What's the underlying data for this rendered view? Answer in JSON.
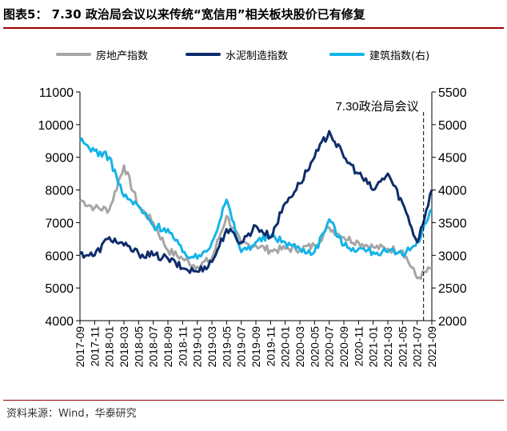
{
  "title": "图表5： 7.30 政治局会议以来传统“宽信用”相关板块股价已有修复",
  "source": "资料来源：Wind，华泰研究",
  "colors": {
    "real_estate": "#a6a6a6",
    "cement": "#0f2d6b",
    "building": "#14b4e8",
    "title_rule": "#9c0000"
  },
  "chart_data": {
    "type": "line",
    "x": [
      "2017-09",
      "2017-11",
      "2018-01",
      "2018-03",
      "2018-05",
      "2018-07",
      "2018-09",
      "2018-11",
      "2019-01",
      "2019-03",
      "2019-05",
      "2019-07",
      "2019-09",
      "2019-11",
      "2020-01",
      "2020-03",
      "2020-05",
      "2020-07",
      "2020-09",
      "2020-11",
      "2021-01",
      "2021-03",
      "2021-05",
      "2021-07",
      "2021-09"
    ],
    "left_axis": {
      "ylim": [
        4000,
        11000
      ],
      "ticks": [
        "4000",
        "5000",
        "6000",
        "7000",
        "8000",
        "9000",
        "10000",
        "11000"
      ]
    },
    "right_axis": {
      "label": "(右)",
      "ylim": [
        2000,
        5500
      ],
      "ticks": [
        "2000",
        "2500",
        "3000",
        "3500",
        "4000",
        "4500",
        "5000",
        "5500"
      ]
    },
    "series": [
      {
        "name": "房地产指数",
        "axis": "left",
        "values": [
          7700,
          7450,
          7400,
          8750,
          7500,
          7000,
          6150,
          5900,
          5650,
          5900,
          7200,
          6350,
          6300,
          6150,
          6200,
          6200,
          6300,
          6850,
          6550,
          6400,
          6250,
          6200,
          6150,
          5300,
          5600
        ]
      },
      {
        "name": "水泥制造指数",
        "axis": "left",
        "values": [
          6050,
          6000,
          6550,
          6300,
          6050,
          6000,
          5900,
          5600,
          5500,
          5800,
          6800,
          6400,
          6900,
          6550,
          7600,
          8200,
          9000,
          9800,
          9000,
          8500,
          8000,
          8500,
          7600,
          6400,
          8000
        ]
      },
      {
        "name": "建筑指数",
        "axis": "right",
        "values": [
          4750,
          4600,
          4500,
          3900,
          3750,
          3450,
          3400,
          3050,
          2950,
          3200,
          3850,
          3050,
          3200,
          3300,
          3200,
          3100,
          3050,
          3550,
          3150,
          3100,
          3050,
          3050,
          3000,
          3200,
          3700
        ]
      }
    ],
    "annotation": {
      "label": "7.30政治局会议",
      "x": "2021-07"
    },
    "legend_position": "top"
  }
}
